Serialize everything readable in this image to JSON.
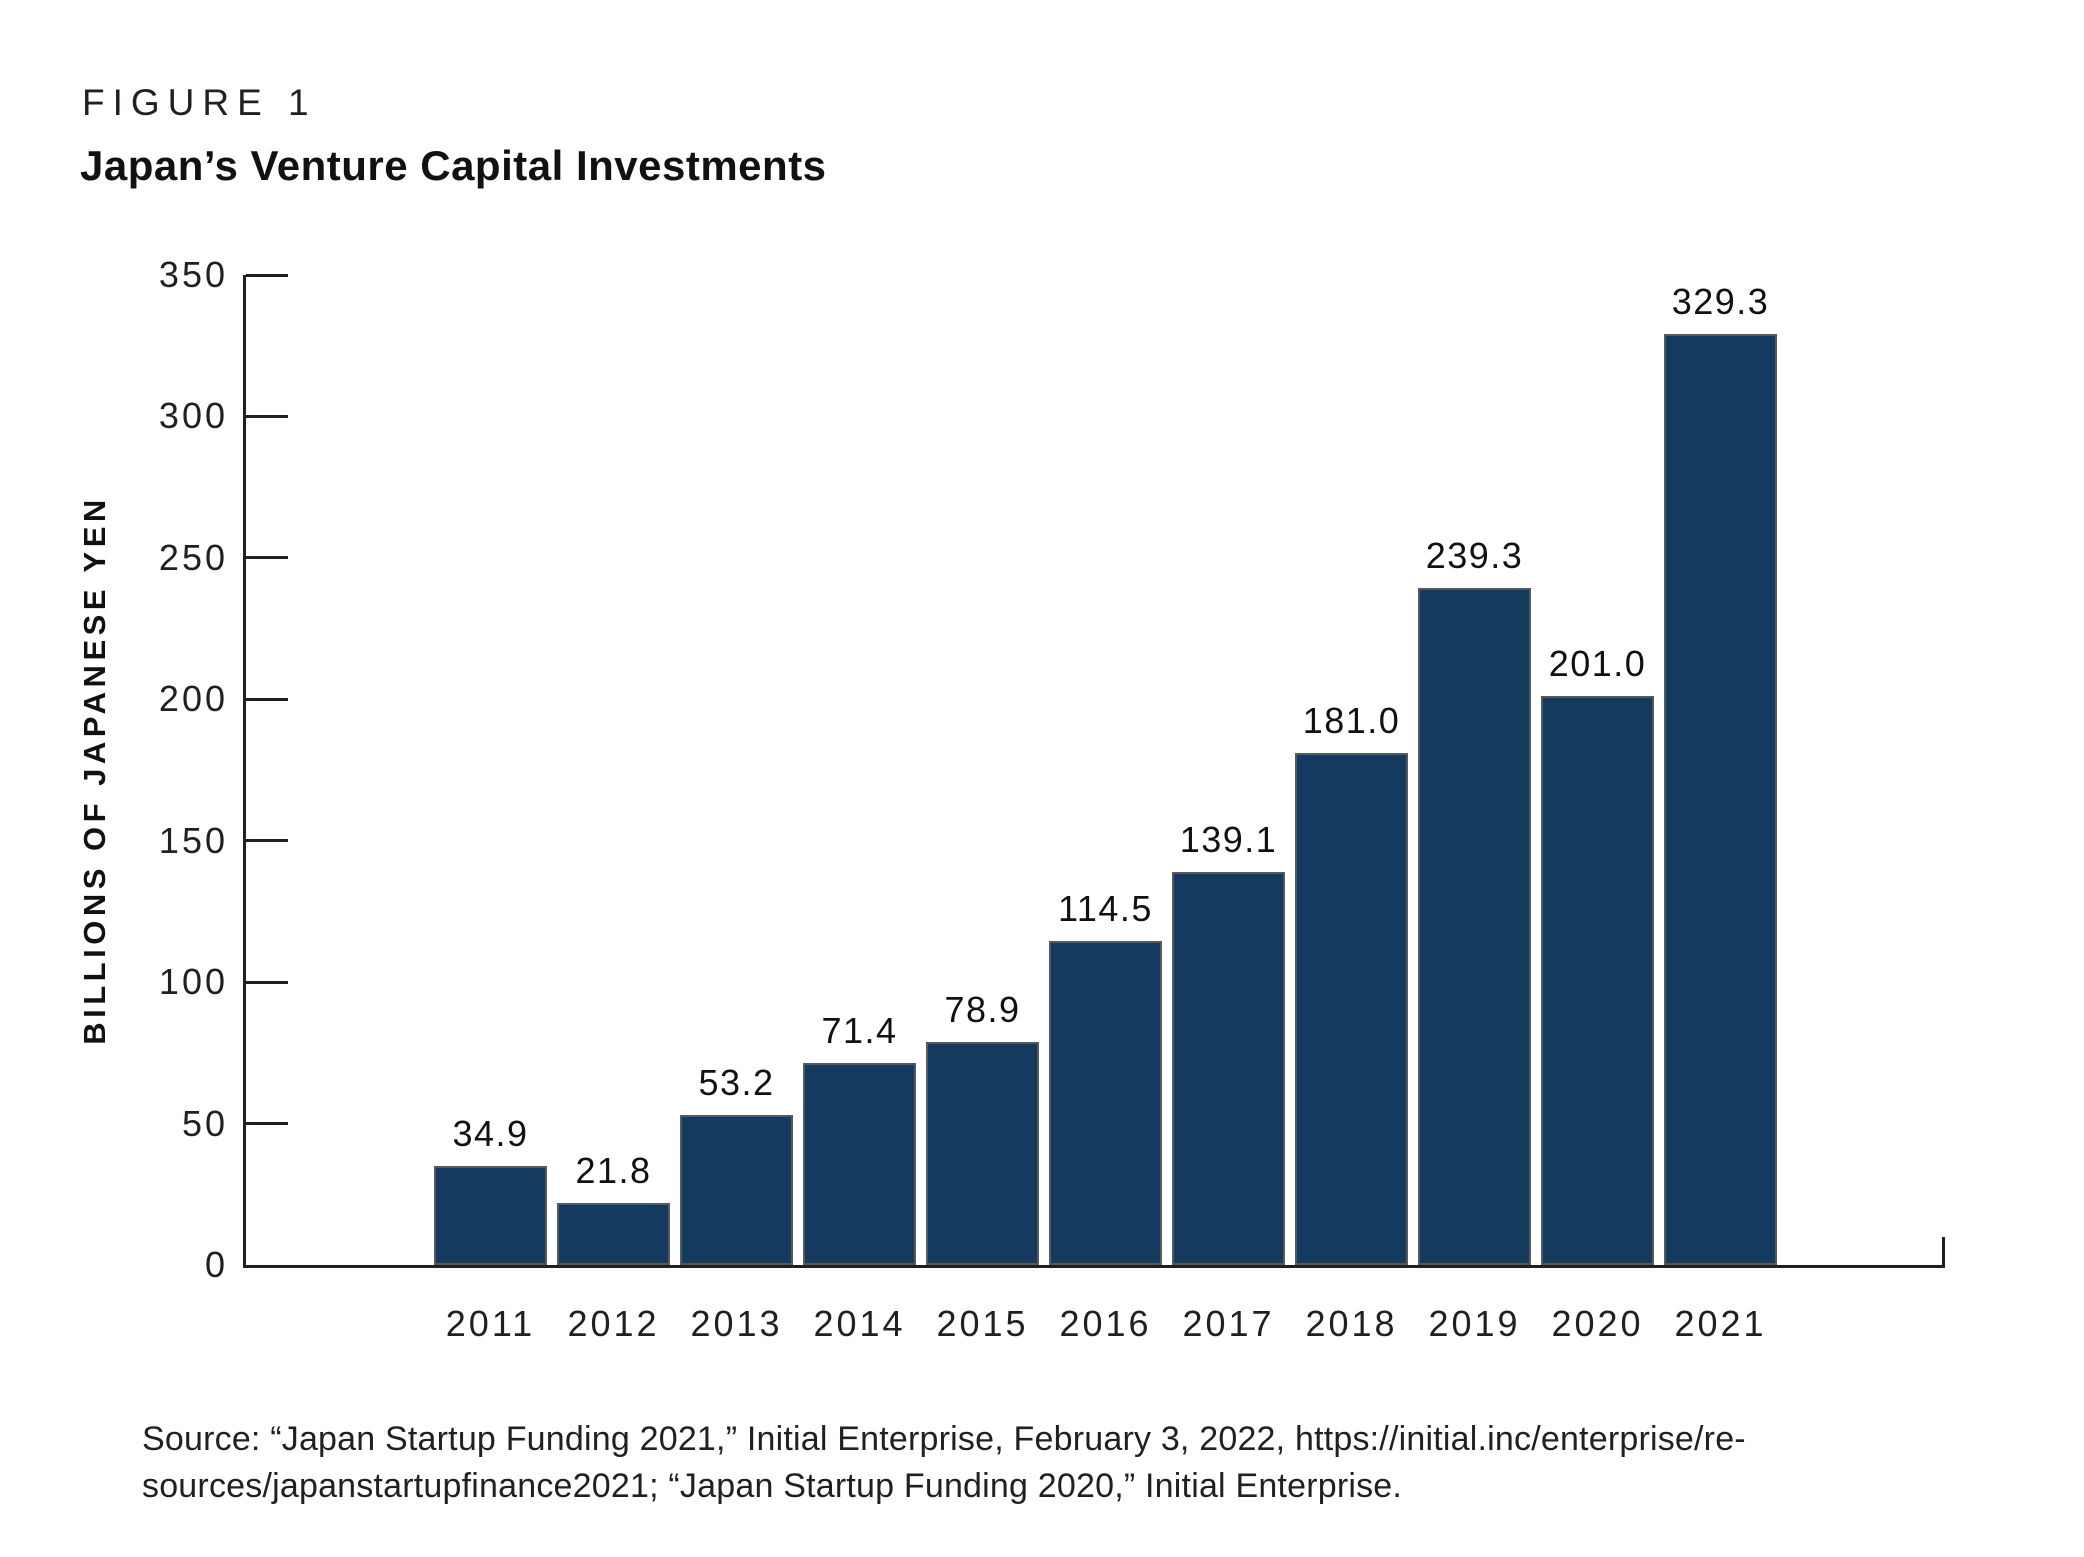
{
  "figure": {
    "label": "FIGURE 1",
    "title": "Japan’s Venture Capital Investments"
  },
  "chart_data": {
    "type": "bar",
    "title": "Japan’s Venture Capital Investments",
    "categories": [
      "2011",
      "2012",
      "2013",
      "2014",
      "2015",
      "2016",
      "2017",
      "2018",
      "2019",
      "2020",
      "2021"
    ],
    "values": [
      34.9,
      21.8,
      53.2,
      71.4,
      78.9,
      114.5,
      139.1,
      181.0,
      239.3,
      201.0,
      329.3
    ],
    "bar_labels": [
      "34.9",
      "21.8",
      "53.2",
      "71.4",
      "78.9",
      "114.5",
      "139.1",
      "181.0",
      "239.3",
      "201.0",
      "329.3"
    ],
    "xlabel": "",
    "ylabel": "BILLIONS OF JAPANESE YEN",
    "ylim": [
      0,
      350
    ],
    "yticks": [
      0,
      50,
      100,
      150,
      200,
      250,
      300,
      350
    ],
    "grid": false,
    "legend": "none",
    "bar_color": "#143a60",
    "bar_border_color": "#58595b",
    "axis_color": "#231f20"
  },
  "source": {
    "line1": "Source: “Japan Startup Funding 2021,” Initial Enterprise, February 3, 2022, https://initial.inc/enterprise/re-",
    "line2": "sources/japanstartupfinance2021; “Japan Startup Funding 2020,” Initial Enterprise."
  }
}
